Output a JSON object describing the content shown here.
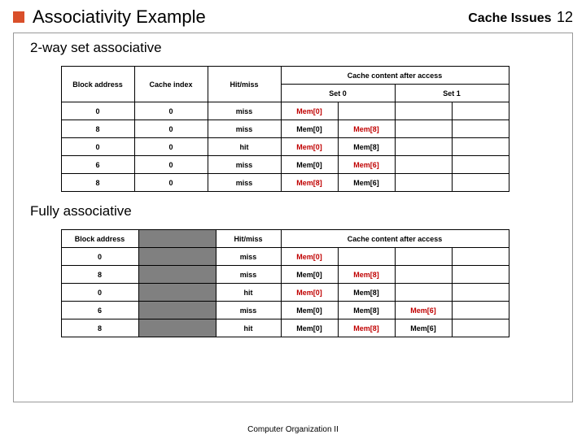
{
  "header": {
    "title": "Associativity Example",
    "right_label": "Cache Issues",
    "page_number": "12"
  },
  "section1": {
    "title": "2-way set associative"
  },
  "section2": {
    "title": "Fully associative"
  },
  "footer": "Computer Organization II",
  "colors": {
    "bullet": "#d94f2a",
    "grey_cell": "#808080",
    "red_text": "#c00000"
  },
  "table1": {
    "headers": {
      "block_address": "Block address",
      "cache_index": "Cache index",
      "hitmiss": "Hit/miss",
      "cache_after": "Cache content after access",
      "set0": "Set 0",
      "set1": "Set 1"
    },
    "rows": [
      {
        "addr": "0",
        "idx": "0",
        "hm": "miss",
        "c0": "Mem[0]",
        "c1": "",
        "c2": "",
        "c3": "",
        "red_col": 0
      },
      {
        "addr": "8",
        "idx": "0",
        "hm": "miss",
        "c0": "Mem[0]",
        "c1": "Mem[8]",
        "c2": "",
        "c3": "",
        "red_col": 1
      },
      {
        "addr": "0",
        "idx": "0",
        "hm": "hit",
        "c0": "Mem[0]",
        "c1": "Mem[8]",
        "c2": "",
        "c3": "",
        "red_col": 0
      },
      {
        "addr": "6",
        "idx": "0",
        "hm": "miss",
        "c0": "Mem[0]",
        "c1": "Mem[6]",
        "c2": "",
        "c3": "",
        "red_col": 1
      },
      {
        "addr": "8",
        "idx": "0",
        "hm": "miss",
        "c0": "Mem[8]",
        "c1": "Mem[6]",
        "c2": "",
        "c3": "",
        "red_col": 0
      }
    ]
  },
  "table2": {
    "headers": {
      "block_address": "Block address",
      "hitmiss": "Hit/miss",
      "cache_after": "Cache content after access"
    },
    "rows": [
      {
        "addr": "0",
        "hm": "miss",
        "c0": "Mem[0]",
        "c1": "",
        "c2": "",
        "c3": "",
        "red_col": 0
      },
      {
        "addr": "8",
        "hm": "miss",
        "c0": "Mem[0]",
        "c1": "Mem[8]",
        "c2": "",
        "c3": "",
        "red_col": 1
      },
      {
        "addr": "0",
        "hm": "hit",
        "c0": "Mem[0]",
        "c1": "Mem[8]",
        "c2": "",
        "c3": "",
        "red_col": 0
      },
      {
        "addr": "6",
        "hm": "miss",
        "c0": "Mem[0]",
        "c1": "Mem[8]",
        "c2": "Mem[6]",
        "c3": "",
        "red_col": 2
      },
      {
        "addr": "8",
        "hm": "hit",
        "c0": "Mem[0]",
        "c1": "Mem[8]",
        "c2": "Mem[6]",
        "c3": "",
        "red_col": 1
      }
    ]
  }
}
